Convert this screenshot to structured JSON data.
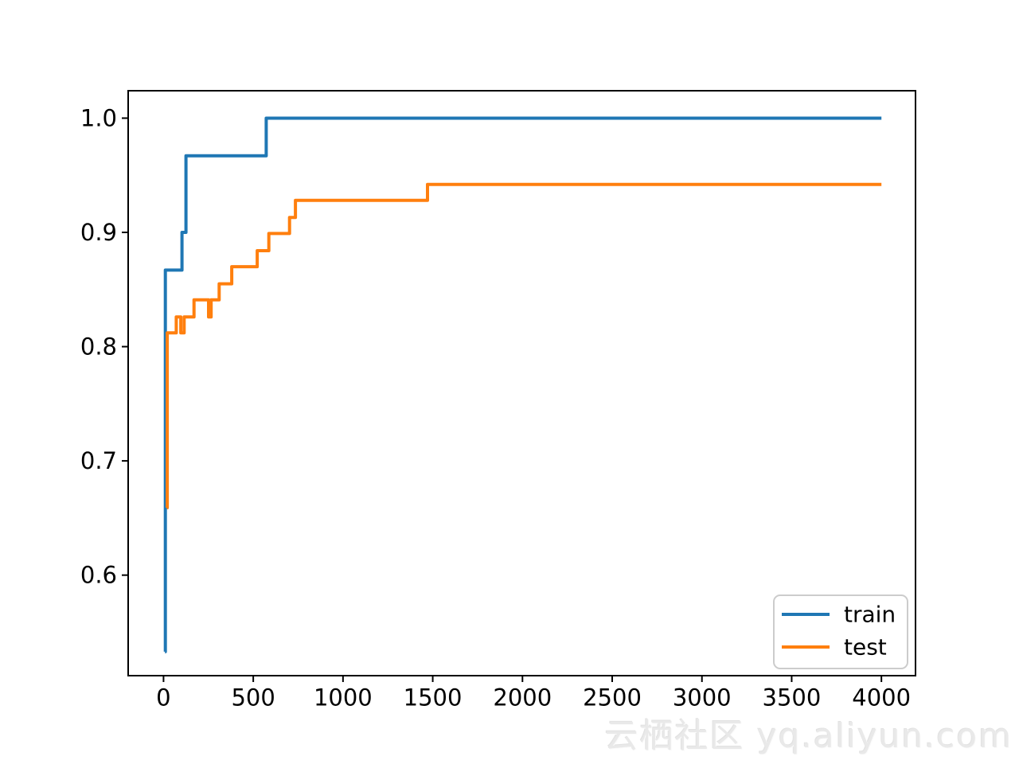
{
  "figure": {
    "background": "#ffffff",
    "watermark": {
      "text": "云栖社区 yq.aliyun.com",
      "color": "#e9e9e9"
    }
  },
  "chart_data": {
    "type": "line",
    "drawstyle": "steps-post",
    "title": "",
    "xlabel": "",
    "ylabel": "",
    "grid": false,
    "xlim": [
      -197,
      4190
    ],
    "ylim": [
      0.512,
      1.024
    ],
    "xticks": [
      0,
      500,
      1000,
      1500,
      2000,
      2500,
      3000,
      3500,
      4000
    ],
    "xtick_labels": [
      "0",
      "500",
      "1000",
      "1500",
      "2000",
      "2500",
      "3000",
      "3500",
      "4000"
    ],
    "yticks": [
      0.6,
      0.7,
      0.8,
      0.9,
      1.0
    ],
    "ytick_labels": [
      "0.6",
      "0.7",
      "0.8",
      "0.9",
      "1.0"
    ],
    "axis_color": "#000000",
    "legend": {
      "position": "lower right",
      "border_color": "#cccccc",
      "background": "#ffffff",
      "entries": [
        "train",
        "test"
      ]
    },
    "series": [
      {
        "name": "train",
        "color": "#1f77b4",
        "points": [
          [
            8,
            0.533
          ],
          [
            10,
            0.867
          ],
          [
            103,
            0.9
          ],
          [
            125,
            0.967
          ],
          [
            572,
            1.0
          ],
          [
            4000,
            1.0
          ]
        ]
      },
      {
        "name": "test",
        "color": "#ff7f0e",
        "points": [
          [
            19,
            0.659
          ],
          [
            21,
            0.812
          ],
          [
            71,
            0.826
          ],
          [
            96,
            0.812
          ],
          [
            115,
            0.826
          ],
          [
            170,
            0.841
          ],
          [
            251,
            0.826
          ],
          [
            265,
            0.841
          ],
          [
            310,
            0.855
          ],
          [
            380,
            0.87
          ],
          [
            522,
            0.884
          ],
          [
            587,
            0.899
          ],
          [
            702,
            0.913
          ],
          [
            735,
            0.928
          ],
          [
            1471,
            0.942
          ],
          [
            4000,
            0.942
          ]
        ]
      }
    ]
  }
}
